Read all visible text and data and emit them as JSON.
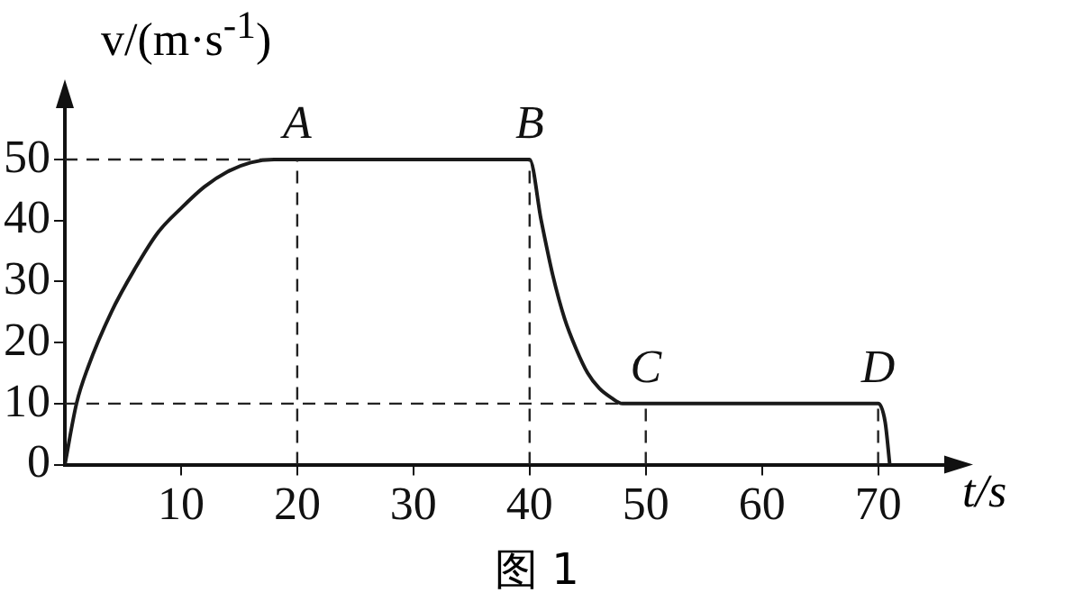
{
  "chart_data": {
    "type": "line",
    "xlabel": "t/s",
    "ylabel": "v/(m·s$^{-1}$)",
    "xlim": [
      0,
      76
    ],
    "ylim": [
      0,
      59
    ],
    "xticks": [
      10,
      20,
      30,
      40,
      50,
      60,
      70
    ],
    "yticks": [
      0,
      10,
      20,
      30,
      40,
      50
    ],
    "grid": false,
    "legend": false,
    "marker": "none",
    "line_style": "solid",
    "series": [
      {
        "color": "#1a1a1a",
        "x": [
          0,
          1,
          2,
          4,
          6,
          8,
          10,
          12,
          14,
          16,
          18,
          20,
          40,
          41,
          42,
          43,
          44,
          45,
          46,
          47,
          48,
          50,
          70,
          70.6,
          71
        ],
        "values": [
          0,
          10,
          16,
          25,
          32,
          38,
          42,
          45.5,
          48,
          49.5,
          50,
          50,
          50,
          40,
          31,
          24,
          19,
          15,
          12.5,
          11,
          10,
          10,
          10,
          7,
          0
        ]
      }
    ],
    "ref_lines": [
      {
        "axis": "y",
        "value": 50,
        "line_style": "dashed"
      },
      {
        "axis": "y",
        "value": 10,
        "line_style": "dashed"
      },
      {
        "axis": "x",
        "value": 20,
        "line_style": "dashed"
      },
      {
        "axis": "x",
        "value": 40,
        "line_style": "dashed"
      },
      {
        "axis": "x",
        "value": 50,
        "line_style": "dashed"
      },
      {
        "axis": "x",
        "value": 70,
        "line_style": "dashed"
      }
    ],
    "annotations": [
      {
        "text": "A",
        "x": 20,
        "y": 50
      },
      {
        "text": "B",
        "x": 40,
        "y": 50
      },
      {
        "text": "C",
        "x": 50,
        "y": 10
      },
      {
        "text": "D",
        "x": 70,
        "y": 10
      },
      "图 1"
    ]
  }
}
